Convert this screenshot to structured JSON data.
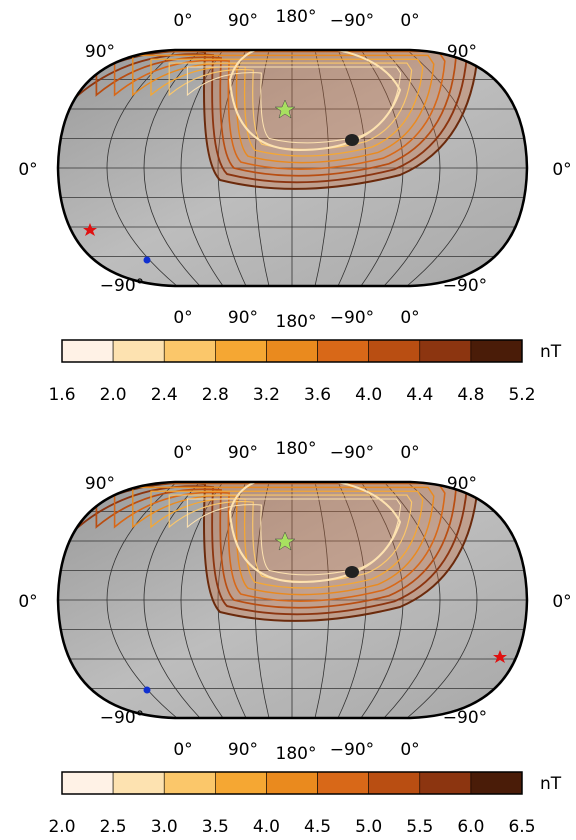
{
  "panels": [
    {
      "top_labels": [
        "0°",
        "90°",
        "180°",
        "−90°",
        "0°"
      ],
      "left_labels": [
        "90°",
        "0°",
        "−90°"
      ],
      "right_labels": [
        "90°",
        "0°",
        "−90°"
      ],
      "bottom_labels": [
        "0°",
        "90°",
        "180°",
        "−90°",
        "0°"
      ],
      "colorbar": {
        "unit": "nT",
        "colors": [
          "#fff2e6",
          "#fde2b0",
          "#fbc76a",
          "#f5a733",
          "#ea8a1e",
          "#d86818",
          "#b94e12",
          "#8c3510",
          "#4a1c08"
        ],
        "ticks": [
          "1.6",
          "2.0",
          "2.4",
          "2.8",
          "3.2",
          "3.6",
          "4.0",
          "4.4",
          "4.8",
          "5.2"
        ]
      }
    },
    {
      "top_labels": [
        "0°",
        "90°",
        "180°",
        "−90°",
        "0°"
      ],
      "left_labels": [
        "90°",
        "0°",
        "−90°"
      ],
      "right_labels": [
        "90°",
        "0°",
        "−90°"
      ],
      "bottom_labels": [
        "0°",
        "90°",
        "180°",
        "−90°",
        "0°"
      ],
      "colorbar": {
        "unit": "nT",
        "colors": [
          "#fff2e6",
          "#fde2b0",
          "#fbc76a",
          "#f5a733",
          "#ea8a1e",
          "#d86818",
          "#b94e12",
          "#8c3510",
          "#4a1c08"
        ],
        "ticks": [
          "2.0",
          "2.5",
          "3.0",
          "3.5",
          "4.0",
          "4.5",
          "5.0",
          "5.5",
          "6.0",
          "6.5"
        ]
      }
    }
  ]
}
